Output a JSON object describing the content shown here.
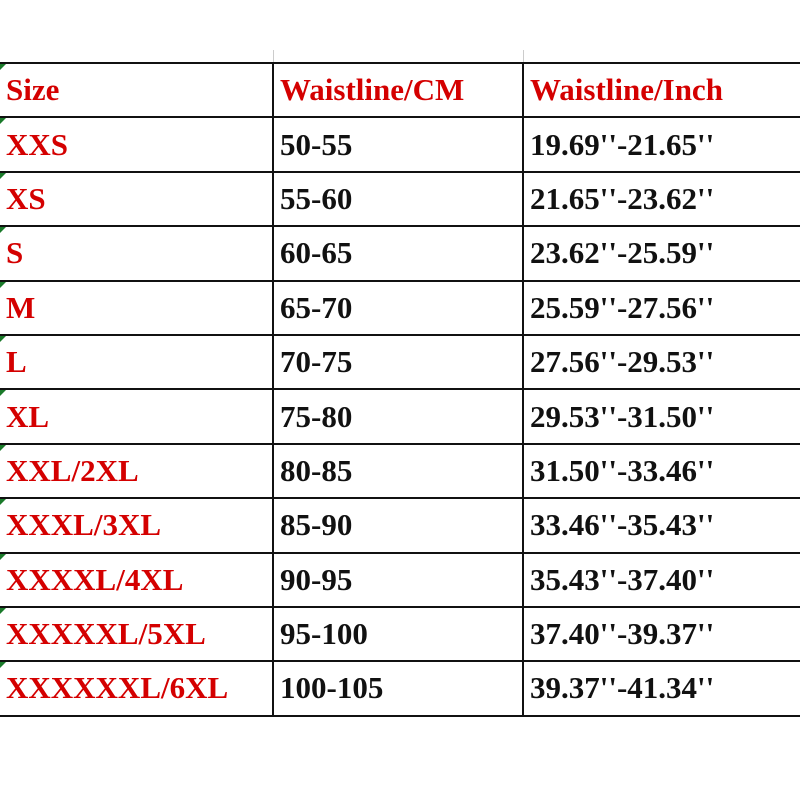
{
  "headers": [
    "Size",
    "Waistline/CM",
    "Waistline/Inch"
  ],
  "rows": [
    [
      "XXS",
      "50-55",
      "19.69''-21.65''"
    ],
    [
      "XS",
      "55-60",
      "21.65''-23.62''"
    ],
    [
      "S",
      "60-65",
      "23.62''-25.59''"
    ],
    [
      "M",
      "65-70",
      "25.59''-27.56''"
    ],
    [
      "L",
      "70-75",
      "27.56''-29.53''"
    ],
    [
      "XL",
      "75-80",
      "29.53''-31.50''"
    ],
    [
      "XXL/2XL",
      "80-85",
      "31.50''-33.46''"
    ],
    [
      "XXXL/3XL",
      "85-90",
      "33.46''-35.43''"
    ],
    [
      "XXXXL/4XL",
      "90-95",
      "35.43''-37.40''"
    ],
    [
      "XXXXXL/5XL",
      "95-100",
      "37.40''-39.37''"
    ],
    [
      "XXXXXXL/6XL",
      "100-105",
      "39.37''-41.34''"
    ]
  ],
  "colors": {
    "header_text": "#d40000",
    "size_text": "#d40000",
    "value_text": "#111111",
    "comment_marker": "#1a7a2a"
  }
}
